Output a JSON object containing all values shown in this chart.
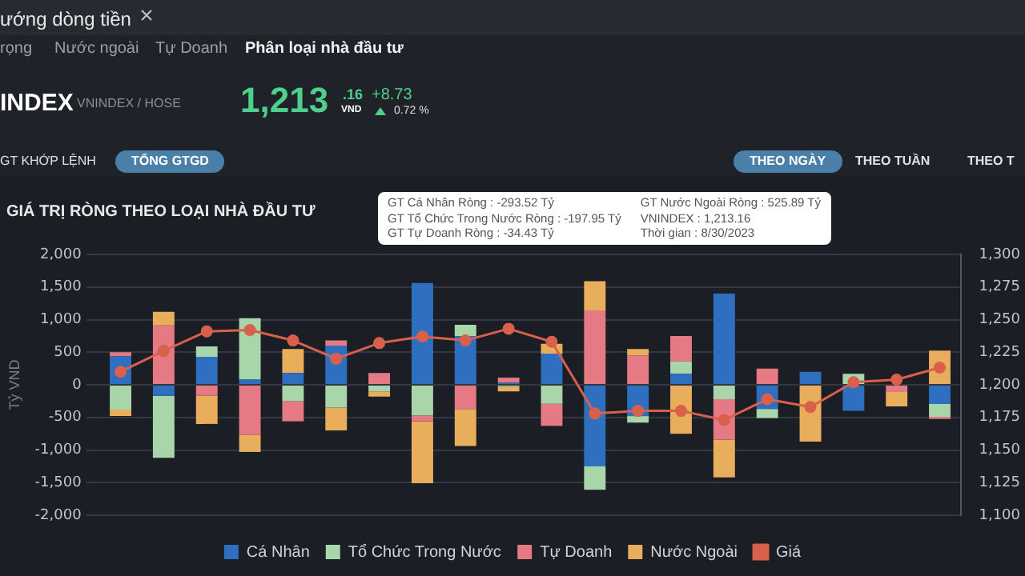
{
  "chart_data": {
    "type": "bar",
    "title": "GIÁ TRỊ RÒNG THEO LOẠI NHÀ ĐẦU TƯ",
    "ylabel": "Tỷ VND",
    "stacked": true,
    "categories": [
      null,
      null,
      null,
      null,
      null,
      null,
      null,
      null,
      null,
      null,
      null,
      null,
      null,
      null,
      null,
      null,
      null,
      null,
      null,
      null
    ],
    "series": [
      {
        "name": "Cá Nhân",
        "color": "#2f6fbf",
        "values": [
          440,
          -170,
          430,
          80,
          180,
          600,
          0,
          1560,
          750,
          30,
          480,
          -1250,
          -480,
          170,
          1400,
          -370,
          200,
          -400,
          null,
          -293.52
        ]
      },
      {
        "name": "Tổ Chức Trong Nước",
        "color": "#a8d5a9",
        "values": [
          -380,
          -950,
          160,
          940,
          -250,
          -350,
          -100,
          -470,
          170,
          -30,
          -290,
          -360,
          -100,
          190,
          -220,
          -140,
          0,
          170,
          0,
          -197.95
        ]
      },
      {
        "name": "Tự Doanh",
        "color": "#e57a85",
        "values": [
          60,
          910,
          -170,
          -770,
          -310,
          80,
          180,
          -90,
          -370,
          80,
          -340,
          1140,
          450,
          390,
          -620,
          250,
          0,
          0,
          -110,
          -34.43
        ]
      },
      {
        "name": "Nước Ngoài",
        "color": "#e8ae5c",
        "values": [
          -100,
          210,
          -430,
          -260,
          370,
          -350,
          -80,
          -950,
          -570,
          -70,
          150,
          450,
          100,
          -750,
          -580,
          0,
          -870,
          0,
          -220,
          525.89
        ]
      },
      {
        "name": "Giá",
        "type": "line",
        "axis": "y2",
        "color": "#d9604a",
        "values": [
          1210,
          1226,
          1241,
          1242,
          1234,
          1220,
          1232,
          1237,
          1234,
          1243,
          1233,
          1178,
          1180,
          1180,
          1173,
          1189,
          1183,
          1202,
          1204,
          1213.16
        ]
      }
    ],
    "ylim": [
      -2000,
      2000
    ],
    "yticks": [
      {
        "value": -2000,
        "label": "-2,000"
      },
      {
        "value": -1500,
        "label": "-1,500"
      },
      {
        "value": -1000,
        "label": "-1,000"
      },
      -500,
      0,
      500,
      {
        "value": 1000,
        "label": "1,000"
      },
      {
        "value": 1500,
        "label": "1,500"
      },
      {
        "value": 2000,
        "label": "2,000"
      }
    ],
    "y2lim": [
      1100,
      1300
    ],
    "y2ticks": [
      {
        "value": 1100,
        "label": "1,100"
      },
      {
        "value": 1125,
        "label": "1,125"
      },
      {
        "value": 1150,
        "label": "1,150"
      },
      {
        "value": 1175,
        "label": "1,175"
      },
      {
        "value": 1200,
        "label": "1,200"
      },
      {
        "value": 1225,
        "label": "1,225"
      },
      {
        "value": 1250,
        "label": "1,250"
      },
      {
        "value": 1275,
        "label": "1,275"
      },
      {
        "value": 1300,
        "label": "1,300"
      }
    ],
    "grid": "y",
    "legend": "bottom",
    "marker": "circle",
    "tick_labels": "y",
    "annotations": [
      "ướng dòng tiền",
      "rọng",
      "Nước ngoài",
      "Tự Doanh",
      "Phân loại nhà đầu tư",
      "INDEX",
      "VNINDEX / HOSE",
      "1,213",
      ".16",
      "VND",
      "+8.73",
      "0.72 %",
      "GT KHỚP LỆNH",
      "TỔNG GTGD",
      "THEO NGÀY",
      "THEO TUẦN",
      "THEO T",
      "GT Cá Nhân Ròng  : -293.52 Tỷ",
      "GT Tổ Chức Trong Nước Ròng : -197.95 Tỷ",
      "GT Tự Doanh Ròng : -34.43 Tỷ",
      "GT Nước Ngoài Ròng : 525.89 Tỷ",
      "VNINDEX : 1,213.16",
      "Thời gian : 8/30/2023"
    ]
  }
}
